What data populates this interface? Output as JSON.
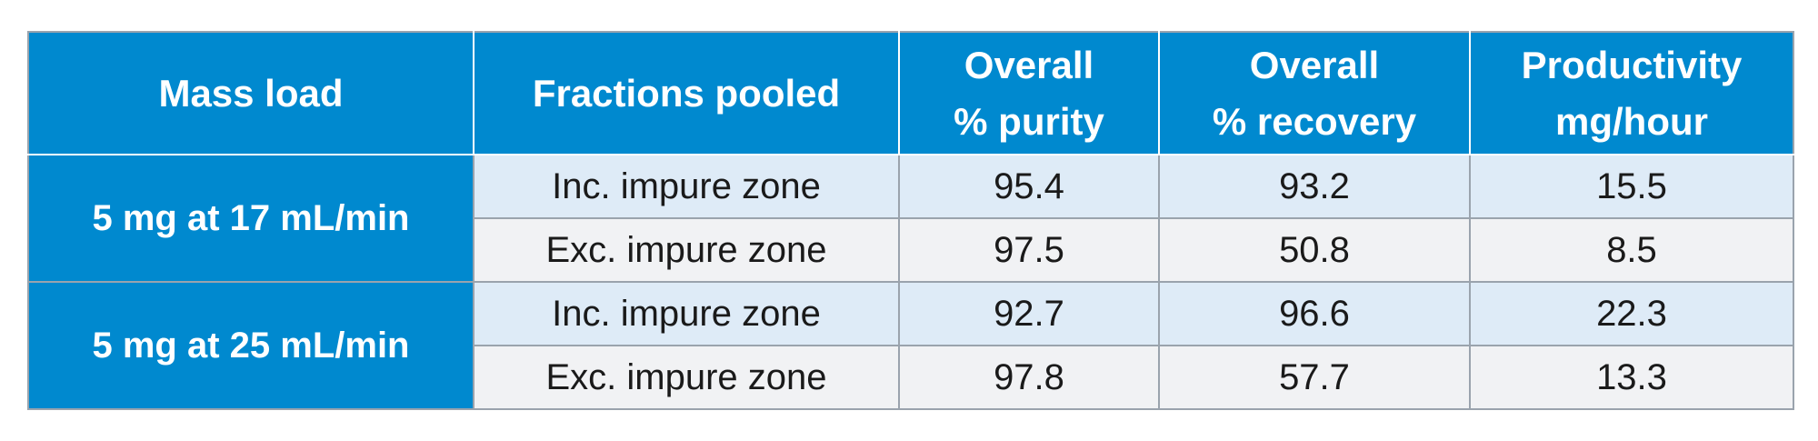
{
  "table": {
    "headers": [
      [
        "Mass load"
      ],
      [
        "Fractions pooled"
      ],
      [
        "Overall",
        "% purity"
      ],
      [
        "Overall",
        "% recovery"
      ],
      [
        "Productivity",
        "mg/hour"
      ]
    ],
    "groups": [
      {
        "mass_load": "5 mg at 17 mL/min",
        "rows": [
          {
            "fractions": "Inc. impure zone",
            "purity": "95.4",
            "recovery": "93.2",
            "productivity": "15.5"
          },
          {
            "fractions": "Exc. impure zone",
            "purity": "97.5",
            "recovery": "50.8",
            "productivity": "8.5"
          }
        ]
      },
      {
        "mass_load": "5 mg at 25 mL/min",
        "rows": [
          {
            "fractions": "Inc. impure zone",
            "purity": "92.7",
            "recovery": "96.6",
            "productivity": "22.3"
          },
          {
            "fractions": "Exc. impure zone",
            "purity": "97.8",
            "recovery": "57.7",
            "productivity": "13.3"
          }
        ]
      }
    ]
  }
}
